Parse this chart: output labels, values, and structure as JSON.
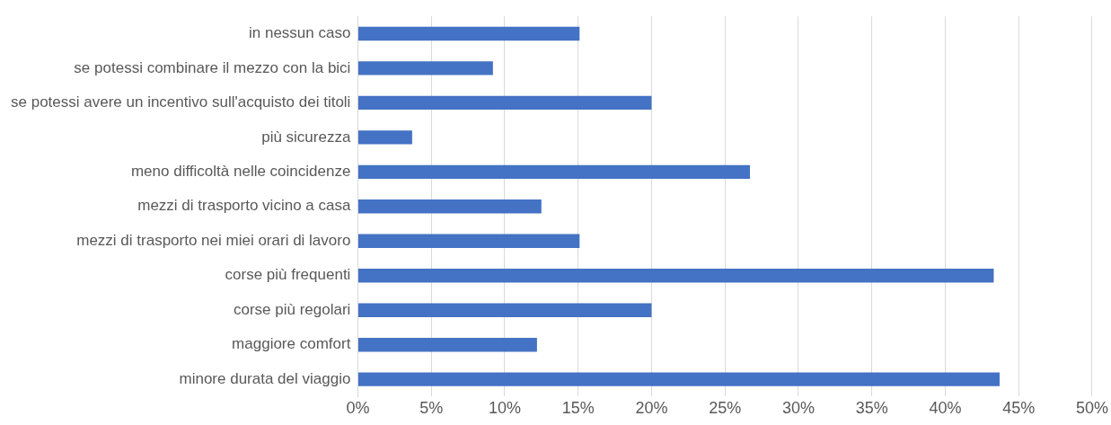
{
  "chart_data": {
    "type": "bar",
    "orientation": "horizontal",
    "categories": [
      "in nessun caso",
      "se potessi combinare il mezzo con la bici",
      "se potessi avere un incentivo sull'acquisto dei titoli",
      "più sicurezza",
      "meno difficoltà nelle coincidenze",
      "mezzi di trasporto vicino a casa",
      "mezzi di trasporto nei miei orari di lavoro",
      "corse più frequenti",
      "corse più regolari",
      "maggiore comfort",
      "minore durata del viaggio"
    ],
    "values": [
      15.1,
      9.2,
      20,
      3.7,
      26.7,
      12.5,
      15.1,
      43.3,
      20,
      12.2,
      43.7
    ],
    "color": "#4472c4",
    "xlim": [
      0,
      50
    ],
    "xticks": [
      {
        "value": 0,
        "label": "0%"
      },
      {
        "value": 5,
        "label": "5%"
      },
      {
        "value": 10,
        "label": "10%"
      },
      {
        "value": 15,
        "label": "15%"
      },
      {
        "value": 20,
        "label": "20%"
      },
      {
        "value": 25,
        "label": "25%"
      },
      {
        "value": 30,
        "label": "30%"
      },
      {
        "value": 35,
        "label": "35%"
      },
      {
        "value": 40,
        "label": "40%"
      },
      {
        "value": 45,
        "label": "45%"
      },
      {
        "value": 50,
        "label": "50%"
      }
    ],
    "grid": "x"
  }
}
